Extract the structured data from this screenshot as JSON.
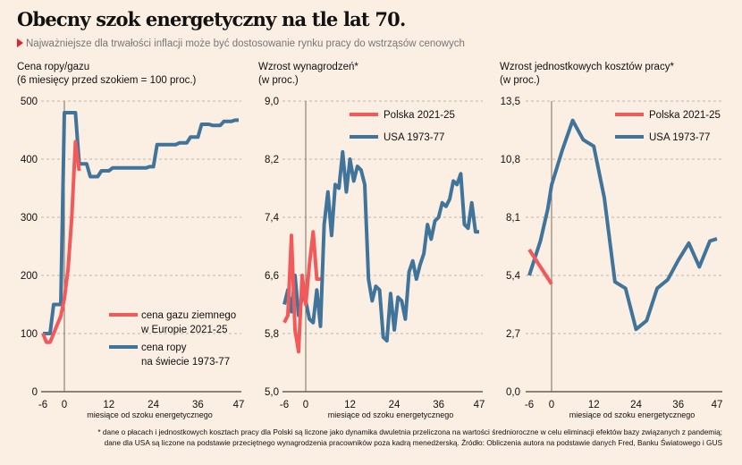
{
  "header": {
    "title": "Obecny szok energetyczny na tle lat 70.",
    "subtitle": "Najważniejsze dla trwałości inflacji może być dostosowanie rynku pracy do wstrząsów cenowych"
  },
  "footnote": {
    "line1": "* dane o płacach i jednostkowych kosztach pracy dla Polski są liczone jako dynamika dwuletnia przeliczona na wartości średnioroczne w celu eliminacji efektów bazy związanych z pandemią;",
    "line2": "dane dla USA są liczone na podstawie przeciętnego wynagrodzenia pracowników poza kadrą menedżerską. Źródło: Obliczenia autora na podstawie danych Fred, Banku Światowego i GUS"
  },
  "colors": {
    "red": "#f2595b",
    "blue": "#41749a",
    "bg": "#fbeee2"
  },
  "chart_data": [
    {
      "type": "line",
      "title_line1": "Cena ropy/gazu",
      "title_line2": "(6 miesięcy przed szokiem = 100 proc.)",
      "xlabel": "miesiące od szoku energetycznego",
      "xticks": [
        "-6",
        "0",
        "12",
        "24",
        "36",
        "47"
      ],
      "xlim": [
        -6,
        47
      ],
      "yticks": [
        "0",
        "100",
        "200",
        "300",
        "400",
        "500"
      ],
      "ylim": [
        0,
        500
      ],
      "grid": true,
      "legend_position": "bottom-right",
      "series": [
        {
          "name": "cena gazu ziemnego w Europie 2021-25",
          "legend_lines": [
            "cena gazu ziemnego",
            "w Europie 2021-25"
          ],
          "color": "red",
          "x": [
            -6,
            -5,
            -4,
            -3,
            -2,
            -1,
            0,
            1,
            2,
            3,
            4
          ],
          "y": [
            100,
            85,
            85,
            100,
            115,
            130,
            160,
            210,
            300,
            430,
            380
          ]
        },
        {
          "name": "cena ropy na świecie 1973-77",
          "legend_lines": [
            "cena ropy",
            "na świecie 1973-77"
          ],
          "color": "blue",
          "x": [
            -6,
            -5,
            -4,
            -3,
            -2,
            -1,
            0,
            1,
            2,
            3,
            4,
            5,
            6,
            7,
            8,
            9,
            10,
            11,
            12,
            13,
            14,
            15,
            16,
            17,
            18,
            19,
            20,
            21,
            22,
            23,
            24,
            25,
            26,
            27,
            28,
            29,
            30,
            31,
            32,
            33,
            34,
            35,
            36,
            37,
            38,
            39,
            40,
            41,
            42,
            43,
            44,
            45,
            46,
            47
          ],
          "y": [
            100,
            100,
            100,
            150,
            150,
            150,
            480,
            480,
            480,
            480,
            392,
            392,
            392,
            370,
            370,
            370,
            380,
            380,
            380,
            385,
            385,
            385,
            385,
            385,
            385,
            385,
            385,
            385,
            385,
            387,
            387,
            425,
            425,
            425,
            425,
            425,
            425,
            428,
            428,
            428,
            438,
            438,
            438,
            460,
            460,
            460,
            458,
            458,
            458,
            465,
            465,
            465,
            467,
            467
          ]
        }
      ]
    },
    {
      "type": "line",
      "title_line1": "Wzrost wynagrodzeń*",
      "title_line2": "(w proc.)",
      "xlabel": "miesiące od szoku energetycznego",
      "xticks": [
        "-6",
        "0",
        "12",
        "24",
        "36",
        "47"
      ],
      "xlim": [
        -6,
        47
      ],
      "yticks": [
        "5,0",
        "5,8",
        "6,6",
        "7,4",
        "8,2",
        "9,0"
      ],
      "ylim": [
        5.0,
        9.0
      ],
      "grid": true,
      "legend_position": "top-right",
      "series": [
        {
          "name": "Polska 2021-25",
          "color": "red",
          "x": [
            -6,
            -5,
            -4,
            -3,
            -2,
            -1,
            0,
            1,
            2,
            3,
            4
          ],
          "y": [
            5.95,
            6.05,
            7.15,
            5.85,
            5.55,
            6.6,
            6.2,
            6.75,
            7.2,
            6.55,
            6.55
          ]
        },
        {
          "name": "USA 1973-77",
          "color": "blue",
          "x": [
            -6,
            -5,
            -4,
            -3,
            -2,
            -1,
            0,
            1,
            2,
            3,
            4,
            5,
            6,
            7,
            8,
            9,
            10,
            11,
            12,
            13,
            14,
            15,
            16,
            17,
            18,
            19,
            20,
            21,
            22,
            23,
            24,
            25,
            26,
            27,
            28,
            29,
            30,
            31,
            32,
            33,
            34,
            35,
            36,
            37,
            38,
            39,
            40,
            41,
            42,
            43,
            44,
            45,
            46,
            47
          ],
          "y": [
            6.2,
            6.4,
            6.1,
            6.6,
            6.05,
            6.3,
            6.25,
            6.0,
            5.95,
            6.4,
            5.9,
            7.3,
            7.75,
            7.15,
            7.85,
            7.8,
            8.3,
            7.75,
            8.2,
            7.9,
            8.1,
            8.05,
            7.85,
            6.55,
            6.25,
            6.45,
            6.4,
            5.75,
            5.7,
            6.35,
            5.85,
            6.3,
            6.25,
            6.0,
            6.65,
            6.8,
            6.55,
            6.75,
            6.9,
            7.3,
            7.1,
            7.35,
            7.4,
            7.6,
            7.55,
            7.65,
            7.9,
            7.85,
            8.0,
            7.3,
            7.25,
            7.6,
            7.2,
            7.2
          ]
        }
      ]
    },
    {
      "type": "line",
      "title_line1": "Wzrost jednostkowych kosztów pracy*",
      "title_line2": "(w proc.)",
      "xlabel": "miesiące od szoku energetycznego",
      "xticks": [
        "-6",
        "0",
        "12",
        "24",
        "36",
        "47"
      ],
      "xlim": [
        -6,
        47
      ],
      "yticks": [
        "0,0",
        "2,7",
        "5,4",
        "8,1",
        "10,8",
        "13,5"
      ],
      "ylim": [
        0,
        13.5
      ],
      "grid": true,
      "legend_position": "top-right",
      "series": [
        {
          "name": "Polska 2021-25",
          "color": "red",
          "x": [
            -6,
            0
          ],
          "y": [
            6.6,
            5.0
          ]
        },
        {
          "name": "USA 1973-77",
          "color": "blue",
          "x": [
            -6,
            -3,
            -1,
            0,
            3,
            6,
            9,
            12,
            15,
            18,
            21,
            24,
            27,
            30,
            33,
            36,
            39,
            42,
            45,
            47
          ],
          "y": [
            5.4,
            7.0,
            8.5,
            9.6,
            11.2,
            12.6,
            11.7,
            11.4,
            9.0,
            5.1,
            4.8,
            2.9,
            3.3,
            4.8,
            5.2,
            6.1,
            6.9,
            5.8,
            7.0,
            7.1
          ]
        }
      ]
    }
  ]
}
